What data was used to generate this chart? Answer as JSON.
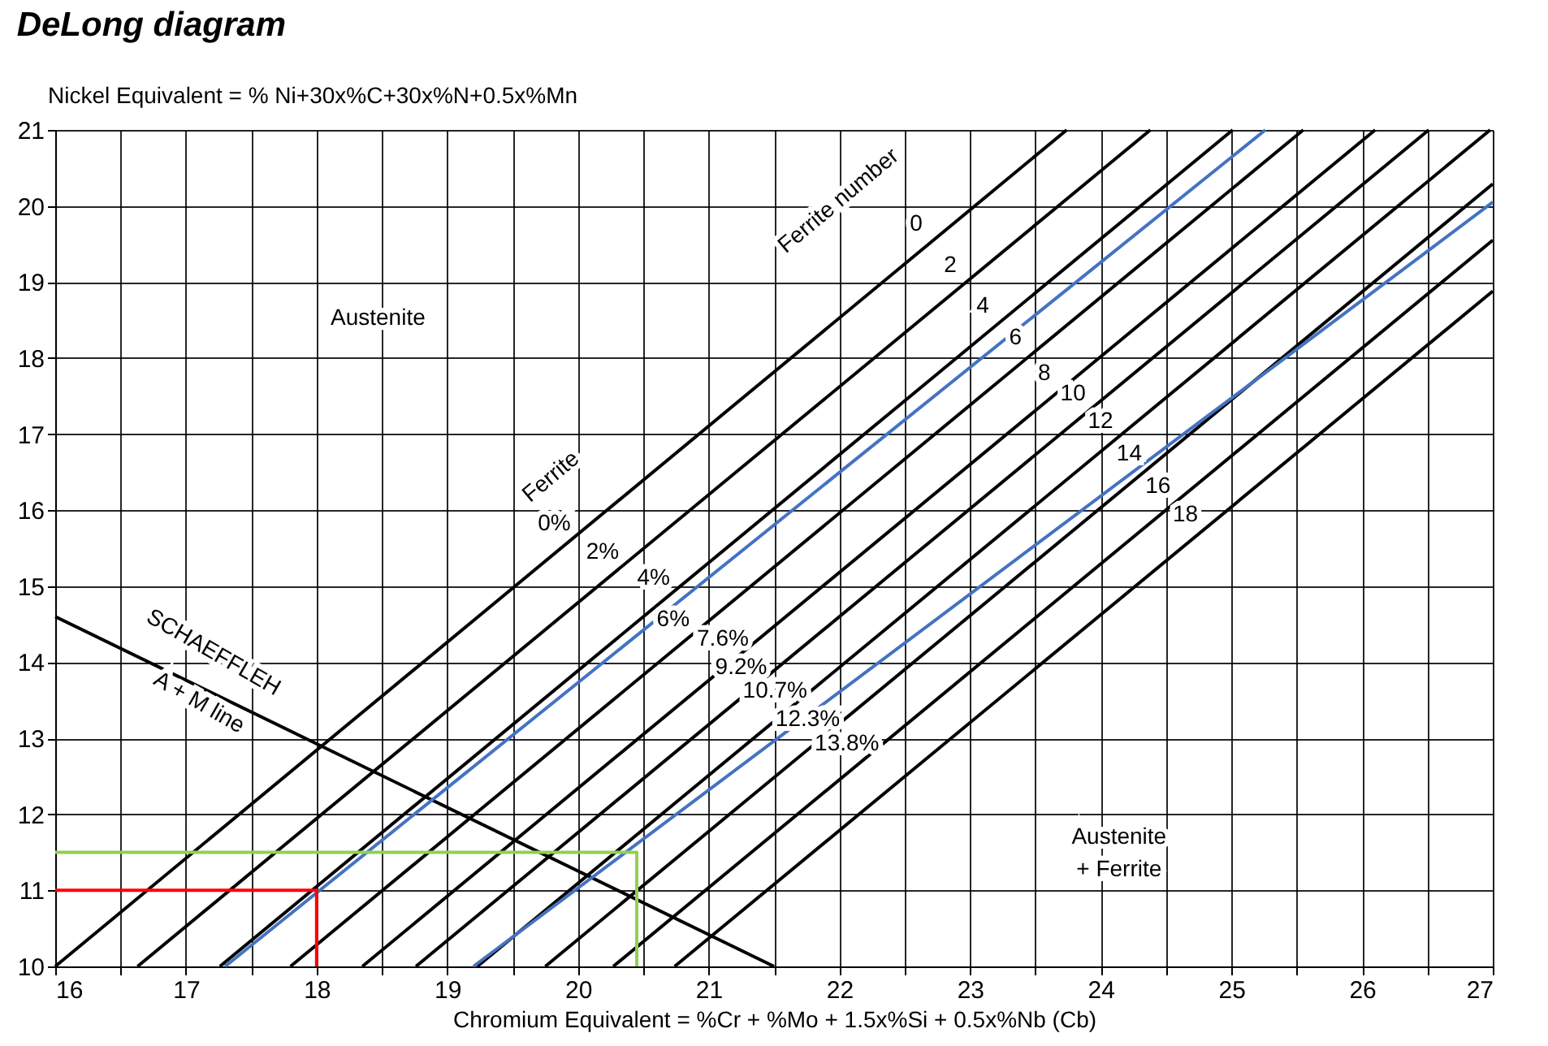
{
  "chart_data": {
    "type": "line",
    "title": "DeLong diagram",
    "ylabel": "Nickel Equivalent = % Ni+30x%C+30x%N+0.5x%Mn",
    "xlabel": "Chromium Equivalent = %Cr + %Mo + 1.5x%Si + 0.5x%Nb (Cb)",
    "xlim": [
      16,
      27
    ],
    "ylim": [
      10,
      21
    ],
    "xticks": [
      16,
      {
        "value": 16.5,
        "label": null
      },
      17,
      {
        "value": 17.5,
        "label": null
      },
      18,
      {
        "value": 18.5,
        "label": null
      },
      19,
      {
        "value": 19.5,
        "label": null
      },
      20,
      {
        "value": 20.5,
        "label": null
      },
      21,
      {
        "value": 21.5,
        "label": null
      },
      22,
      {
        "value": 22.5,
        "label": null
      },
      23,
      {
        "value": 23.5,
        "label": null
      },
      24,
      {
        "value": 24.5,
        "label": null
      },
      25,
      {
        "value": 25.5,
        "label": null
      },
      26,
      {
        "value": 26.5,
        "label": null
      },
      27
    ],
    "yticks": [
      10,
      11,
      12,
      13,
      14,
      15,
      16,
      17,
      18,
      19,
      20,
      21
    ],
    "grid": true,
    "legend": false,
    "marker": "none",
    "line_style": "solid",
    "series": [
      {
        "color": "#000000",
        "x": [
          16,
          23.74
        ],
        "values": [
          10,
          21
        ]
      },
      {
        "color": "#000000",
        "x": [
          16.63,
          24.38
        ],
        "values": [
          10,
          21
        ]
      },
      {
        "color": "#000000",
        "x": [
          17.26,
          25.01
        ],
        "values": [
          10,
          21
        ]
      },
      {
        "color": "#000000",
        "x": [
          17.8,
          25.55
        ],
        "values": [
          10,
          21
        ]
      },
      {
        "color": "#000000",
        "x": [
          18.35,
          26.1
        ],
        "values": [
          10,
          21
        ]
      },
      {
        "color": "#000000",
        "x": [
          18.76,
          26.51
        ],
        "values": [
          10,
          21
        ]
      },
      {
        "color": "#000000",
        "x": [
          19.23,
          26.98
        ],
        "values": [
          10,
          21
        ]
      },
      {
        "color": "#000000",
        "x": [
          19.75,
          27
        ],
        "values": [
          10,
          20.29
        ]
      },
      {
        "color": "#000000",
        "x": [
          20.27,
          27
        ],
        "values": [
          10,
          19.55
        ]
      },
      {
        "color": "#000000",
        "x": [
          20.74,
          27
        ],
        "values": [
          10,
          18.88
        ]
      },
      {
        "color": "#000000",
        "x": [
          16,
          21.5
        ],
        "values": [
          14.6,
          10
        ]
      },
      {
        "color": "#4472c4",
        "x": [
          17.3,
          25.26
        ],
        "values": [
          10,
          21
        ]
      },
      {
        "color": "#4472c4",
        "x": [
          19.2,
          27
        ],
        "values": [
          10,
          20.05
        ]
      },
      {
        "color": "#ff0000",
        "x": [
          16,
          18,
          18
        ],
        "values": [
          11,
          11,
          10
        ]
      },
      {
        "color": "#92d050",
        "x": [
          16,
          20.45,
          20.45
        ],
        "values": [
          11.5,
          11.5,
          10
        ]
      }
    ],
    "annotations": [
      "Austenite",
      "Austenite",
      "+ Ferrite",
      "Ferrite number",
      "Ferrite",
      "SCHAEFFLEH",
      "A + M line",
      {
        "text": "0",
        "x": 22.7,
        "y": 19.53
      },
      {
        "text": "2",
        "x": 22.96,
        "y": 18.98
      },
      {
        "text": "4",
        "x": 23.21,
        "y": 18.45
      },
      {
        "text": "6",
        "x": 23.46,
        "y": 18.03
      },
      {
        "text": "8",
        "x": 23.68,
        "y": 17.56
      },
      {
        "text": "10",
        "x": 23.9,
        "y": 17.29
      },
      {
        "text": "12",
        "x": 24.11,
        "y": 16.93
      },
      {
        "text": "14",
        "x": 24.33,
        "y": 16.5
      },
      {
        "text": "16",
        "x": 24.55,
        "y": 16.08
      },
      {
        "text": "18",
        "x": 24.76,
        "y": 15.7
      },
      {
        "text": "0%",
        "x": 19.93,
        "y": 15.59
      },
      {
        "text": "2%",
        "x": 20.3,
        "y": 15.21
      },
      {
        "text": "4%",
        "x": 20.69,
        "y": 14.87
      },
      {
        "text": "6%",
        "x": 20.84,
        "y": 14.32
      },
      {
        "text": "7.6%",
        "x": 21.22,
        "y": 14.07
      },
      {
        "text": "9.2%",
        "x": 21.36,
        "y": 13.69
      },
      {
        "text": "10.7%",
        "x": 21.62,
        "y": 13.39
      },
      {
        "text": "12.3%",
        "x": 21.87,
        "y": 13.01
      },
      {
        "text": "13.8%",
        "x": 22.17,
        "y": 12.69
      }
    ]
  }
}
